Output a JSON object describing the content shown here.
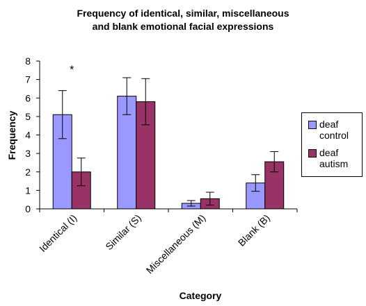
{
  "chart_data": {
    "type": "bar",
    "title_lines": [
      "Frequency of identical, similar, miscellaneous",
      "and blank emotional facial expressions"
    ],
    "xlabel": "Category",
    "ylabel": "Frequency",
    "categories": [
      "Identical (I)",
      "Similar (S)",
      "Miscellaneous (M)",
      "Blank (B)"
    ],
    "ylim": [
      0,
      8
    ],
    "yticks": [
      "0",
      "1",
      "2",
      "3",
      "4",
      "5",
      "6",
      "7",
      "8"
    ],
    "series": [
      {
        "name": "deaf control",
        "color": "#9999ff",
        "values": [
          5.1,
          6.1,
          0.3,
          1.4
        ],
        "errors": [
          1.3,
          1.0,
          0.15,
          0.45
        ]
      },
      {
        "name": "deaf autism",
        "color": "#993366",
        "values": [
          2.0,
          5.8,
          0.55,
          2.55
        ],
        "errors": [
          0.75,
          1.25,
          0.35,
          0.55
        ]
      }
    ],
    "annotations": [
      {
        "text": "*",
        "category": "Identical (I)"
      }
    ],
    "grid": false,
    "legend_position": "right"
  },
  "legend": {
    "items": [
      {
        "label": "deaf control",
        "color": "#9999ff"
      },
      {
        "label": "deaf autism",
        "color": "#993366"
      }
    ]
  }
}
